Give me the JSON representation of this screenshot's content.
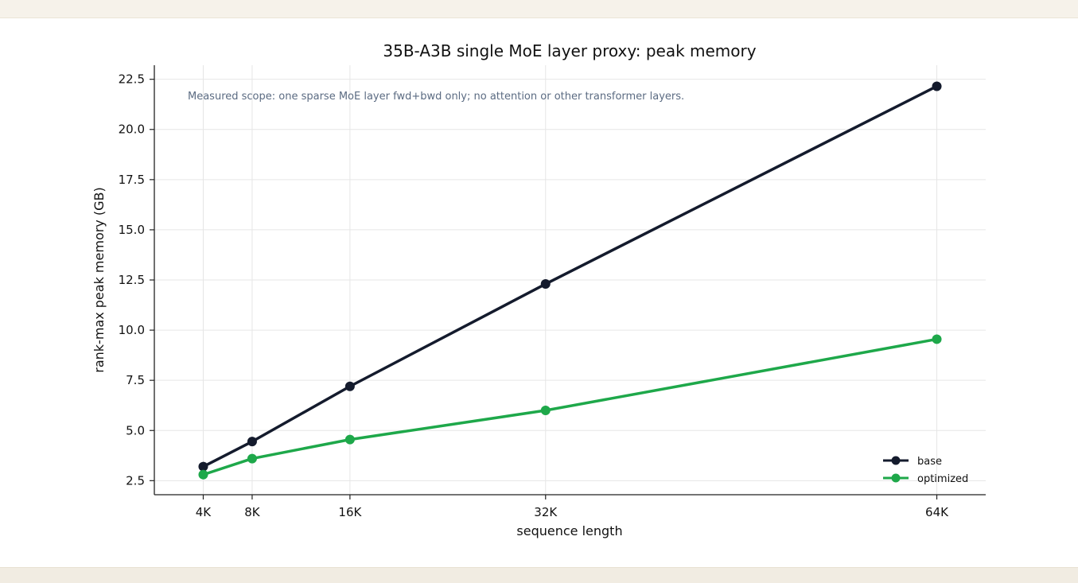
{
  "chart_data": {
    "type": "line",
    "title": "35B-A3B single MoE layer proxy: peak memory",
    "xlabel": "sequence length",
    "ylabel": "rank-max peak memory (GB)",
    "annotation": "Measured scope: one sparse MoE layer fwd+bwd only; no attention or other transformer layers.",
    "x": [
      4,
      8,
      16,
      32,
      64
    ],
    "x_tick_labels": [
      "4K",
      "8K",
      "16K",
      "32K",
      "64K"
    ],
    "xlim": [
      0,
      68
    ],
    "y_ticks": [
      2.5,
      5.0,
      7.5,
      10.0,
      12.5,
      15.0,
      17.5,
      20.0,
      22.5
    ],
    "y_tick_labels": [
      "2.5",
      "5.0",
      "7.5",
      "10.0",
      "12.5",
      "15.0",
      "17.5",
      "20.0",
      "22.5"
    ],
    "ylim": [
      1.8,
      23.2
    ],
    "grid": true,
    "legend_position": "bottom-right",
    "series": [
      {
        "name": "base",
        "color": "#141b2d",
        "values": [
          3.2,
          4.45,
          7.2,
          12.3,
          22.15
        ]
      },
      {
        "name": "optimized",
        "color": "#1ea84a",
        "values": [
          2.8,
          3.6,
          4.55,
          6.0,
          9.55
        ]
      }
    ]
  }
}
